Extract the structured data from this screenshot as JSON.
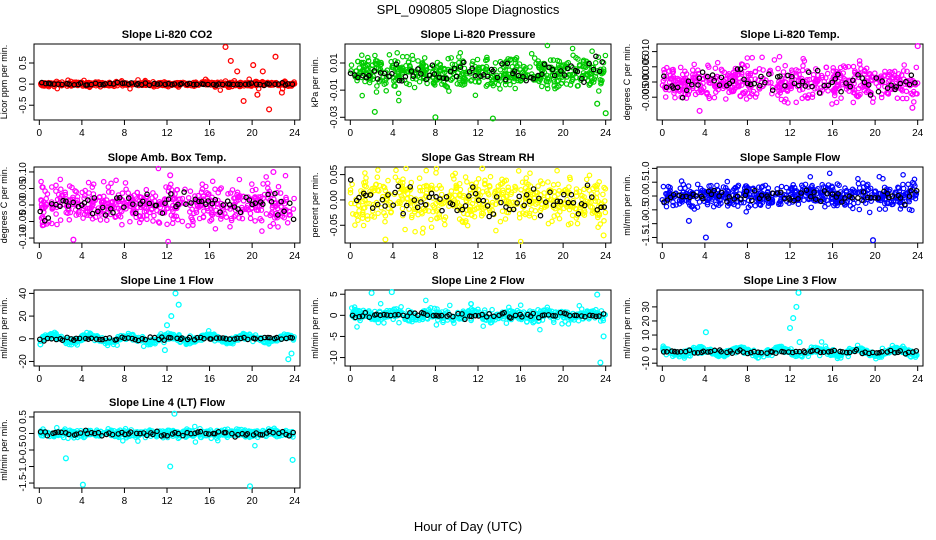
{
  "figure": {
    "title": "SPL_090805  Slope Diagnostics",
    "xlabel": "Hour of Day (UTC)"
  },
  "chart_data": [
    {
      "type": "scatter",
      "title": "Slope Li-820 CO2",
      "ylabel": "Licor ppm per min.",
      "color": "#ff0000",
      "xlim": [
        -0.5,
        24.5
      ],
      "xticks": [
        0,
        4,
        8,
        12,
        16,
        20,
        24
      ],
      "ylim": [
        -0.85,
        0.95
      ],
      "yticks": [
        -0.5,
        0.0,
        0.5
      ],
      "ytick_labels": [
        "-0.5",
        "0.0",
        "0.5"
      ],
      "center": 0.0,
      "spread": 0.025,
      "noise": [
        0.15,
        0.05
      ],
      "spikes": [
        {
          "x": 17.5,
          "y": 0.88
        },
        {
          "x": 18.0,
          "y": 0.55
        },
        {
          "x": 18.6,
          "y": 0.3
        },
        {
          "x": 19.2,
          "y": -0.4
        },
        {
          "x": 20.1,
          "y": 0.45
        },
        {
          "x": 21.0,
          "y": 0.3
        },
        {
          "x": 21.6,
          "y": -0.6
        },
        {
          "x": 22.2,
          "y": 0.65
        },
        {
          "x": 22.8,
          "y": -0.2
        },
        {
          "x": 20.5,
          "y": -0.25
        }
      ]
    },
    {
      "type": "scatter",
      "title": "Slope Li-820 Pressure",
      "ylabel": "kPa per min.",
      "color": "#00cc00",
      "xlim": [
        -0.5,
        24.5
      ],
      "xticks": [
        0,
        4,
        8,
        12,
        16,
        20,
        24
      ],
      "ylim": [
        -0.032,
        0.024
      ],
      "yticks": [
        -0.03,
        -0.01,
        0.01
      ],
      "ytick_labels": [
        "-0.03",
        "-0.01",
        "0.01"
      ],
      "center": 0.003,
      "spread": 0.006,
      "noise": [
        0.01,
        0.008
      ],
      "spikes": [
        {
          "x": 2.3,
          "y": -0.026
        },
        {
          "x": 8.0,
          "y": -0.03
        },
        {
          "x": 13.4,
          "y": -0.031
        },
        {
          "x": 24.0,
          "y": -0.027
        },
        {
          "x": 23.2,
          "y": -0.02
        }
      ]
    },
    {
      "type": "scatter",
      "title": "Slope Li-820 Temp.",
      "ylabel": "degrees C per min.",
      "color": "#ff00ff",
      "xlim": [
        -0.5,
        24.5
      ],
      "xticks": [
        0,
        4,
        8,
        12,
        16,
        20,
        24
      ],
      "ylim": [
        -0.0125,
        0.0125
      ],
      "yticks": [
        -0.005,
        0.0,
        0.005,
        0.01
      ],
      "ytick_labels": [
        "-0.005",
        "0.000",
        "0.005",
        "0.010"
      ],
      "center": 0.0,
      "spread": 0.003,
      "noise": [
        0.003,
        0.001
      ],
      "spikes": [
        {
          "x": 24.0,
          "y": 0.0118
        },
        {
          "x": 3.5,
          "y": -0.0095
        },
        {
          "x": 23.5,
          "y": -0.0085
        }
      ]
    },
    {
      "type": "scatter",
      "title": "Slope Amb. Box Temp.",
      "ylabel": "degrees C per min.",
      "color": "#ff00ff",
      "xlim": [
        -0.5,
        24.5
      ],
      "xticks": [
        0,
        4,
        8,
        12,
        16,
        20,
        24
      ],
      "ylim": [
        -0.115,
        0.115
      ],
      "yticks": [
        -0.1,
        -0.05,
        0.0,
        0.05,
        0.1
      ],
      "ytick_labels": [
        "-0.10",
        "-0.05",
        "0.00",
        "0.05",
        "0.10"
      ],
      "center": 0.0,
      "spread": 0.03,
      "noise": [
        0.01,
        0.02
      ],
      "spikes": [
        {
          "x": 3.2,
          "y": -0.105
        },
        {
          "x": 0.4,
          "y": -0.06
        },
        {
          "x": 12.3,
          "y": 0.09
        },
        {
          "x": 22.0,
          "y": 0.1
        }
      ]
    },
    {
      "type": "scatter",
      "title": "Slope Gas Stream RH",
      "ylabel": "percent per min.",
      "color": "#ffff00",
      "xlim": [
        -0.5,
        24.5
      ],
      "xticks": [
        0,
        4,
        8,
        12,
        16,
        20,
        24
      ],
      "ylim": [
        -0.085,
        0.065
      ],
      "yticks": [
        -0.05,
        0.0,
        0.05
      ],
      "ytick_labels": [
        "-0.05",
        "0.00",
        "0.05"
      ],
      "center": 0.0,
      "spread": 0.025,
      "noise": [
        0.01,
        0.01
      ],
      "spikes": [
        {
          "x": 3.3,
          "y": -0.078
        },
        {
          "x": 12.4,
          "y": 0.062
        },
        {
          "x": 23.8,
          "y": -0.07
        }
      ]
    },
    {
      "type": "scatter",
      "title": "Slope Sample Flow",
      "ylabel": "ml/min per min.",
      "color": "#0000ff",
      "xlim": [
        -0.5,
        24.5
      ],
      "xticks": [
        0,
        4,
        8,
        12,
        16,
        20,
        24
      ],
      "ylim": [
        -1.7,
        1.05
      ],
      "yticks": [
        -1.5,
        -1.0,
        -0.5,
        0.0,
        0.5,
        1.0
      ],
      "ytick_labels": [
        "-1.5",
        "-1.0",
        "-0.5",
        "0.0",
        "0.5",
        "1.0"
      ],
      "center": 0.0,
      "spread": 0.2,
      "noise": [
        0.12,
        0.1
      ],
      "spikes": [
        {
          "x": 4.1,
          "y": -1.5
        },
        {
          "x": 19.8,
          "y": -1.6
        },
        {
          "x": 6.3,
          "y": -1.05
        },
        {
          "x": 2.5,
          "y": -0.9
        }
      ]
    },
    {
      "type": "scatter",
      "title": "Slope Line 1 Flow",
      "ylabel": "ml/min per min.",
      "color": "#00ffff",
      "xlim": [
        -0.5,
        24.5
      ],
      "xticks": [
        0,
        4,
        8,
        12,
        16,
        20,
        24
      ],
      "ylim": [
        -24,
        43
      ],
      "yticks": [
        -20,
        0,
        20,
        40
      ],
      "ytick_labels": [
        "-20",
        "0",
        "20",
        "40"
      ],
      "center": 0.0,
      "spread": 1.2,
      "noise": [
        0.15,
        2.0
      ],
      "spikes": [
        {
          "x": 12.8,
          "y": 40
        },
        {
          "x": 13.1,
          "y": 30
        },
        {
          "x": 12.4,
          "y": 20
        },
        {
          "x": 12.0,
          "y": 12
        },
        {
          "x": 23.4,
          "y": -18
        },
        {
          "x": 23.7,
          "y": -13
        },
        {
          "x": 0.1,
          "y": -5
        },
        {
          "x": 11.8,
          "y": -10
        }
      ]
    },
    {
      "type": "scatter",
      "title": "Slope Line 2 Flow",
      "ylabel": "ml/min per min.",
      "color": "#00ffff",
      "xlim": [
        -0.5,
        24.5
      ],
      "xticks": [
        0,
        4,
        8,
        12,
        16,
        20,
        24
      ],
      "ylim": [
        -12,
        6
      ],
      "yticks": [
        -10,
        -5,
        0,
        5
      ],
      "ytick_labels": [
        "-10",
        "-5",
        "0",
        "5"
      ],
      "center": 0.0,
      "spread": 0.6,
      "noise": [
        0.25,
        0.8
      ],
      "spikes": [
        {
          "x": 2.0,
          "y": 5.3
        },
        {
          "x": 3.9,
          "y": 5.5
        },
        {
          "x": 23.5,
          "y": -11.2
        },
        {
          "x": 23.2,
          "y": 4.9
        },
        {
          "x": 23.8,
          "y": -5.0
        }
      ]
    },
    {
      "type": "scatter",
      "title": "Slope Line 3 Flow",
      "ylabel": "ml/min per min.",
      "color": "#00ffff",
      "xlim": [
        -0.5,
        24.5
      ],
      "xticks": [
        0,
        4,
        8,
        12,
        16,
        20,
        24
      ],
      "ylim": [
        -12,
        42
      ],
      "yticks": [
        -10,
        0,
        10,
        20,
        30
      ],
      "ytick_labels": [
        "-10",
        "0",
        "10",
        "20",
        "30"
      ],
      "center": -2.0,
      "spread": 1.0,
      "noise": [
        0.2,
        2.0
      ],
      "spikes": [
        {
          "x": 12.8,
          "y": 40
        },
        {
          "x": 12.6,
          "y": 30
        },
        {
          "x": 12.3,
          "y": 22
        },
        {
          "x": 12.0,
          "y": 15
        },
        {
          "x": 4.1,
          "y": 12
        },
        {
          "x": 12.9,
          "y": 5
        }
      ]
    },
    {
      "type": "scatter",
      "title": "Slope Line 4 (LT) Flow",
      "ylabel": "ml/min per min.",
      "color": "#00ffff",
      "xlim": [
        -0.5,
        24.5
      ],
      "xticks": [
        0,
        4,
        8,
        12,
        16,
        20,
        24
      ],
      "ylim": [
        -1.65,
        0.65
      ],
      "yticks": [
        -1.5,
        -1.0,
        -0.5,
        0.0,
        0.5
      ],
      "ytick_labels": [
        "-1.5",
        "-1.0",
        "-0.5",
        "0.0",
        "0.5"
      ],
      "center": 0.0,
      "spread": 0.06,
      "noise": [
        0.1,
        0.15
      ],
      "spikes": [
        {
          "x": 4.1,
          "y": -1.55
        },
        {
          "x": 19.8,
          "y": -1.6
        },
        {
          "x": 12.3,
          "y": -1.0
        },
        {
          "x": 2.5,
          "y": -0.75
        },
        {
          "x": 12.7,
          "y": 0.6
        },
        {
          "x": 23.8,
          "y": -0.8
        }
      ]
    }
  ]
}
